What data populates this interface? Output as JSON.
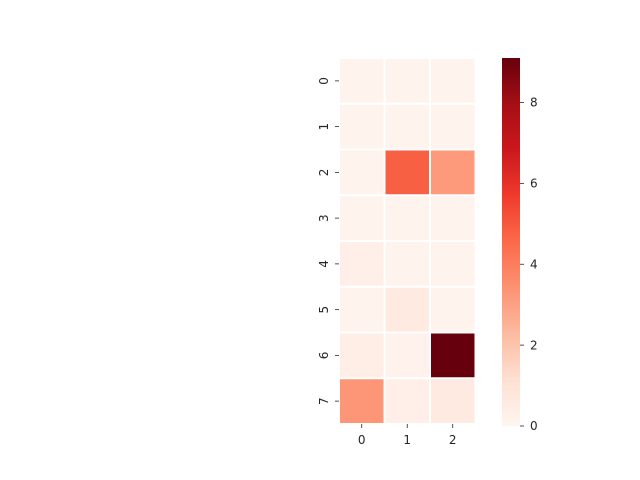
{
  "chart_data": {
    "type": "heatmap",
    "title": "",
    "xlabel": "",
    "ylabel": "",
    "x_categories": [
      "0",
      "1",
      "2"
    ],
    "y_categories": [
      "0",
      "1",
      "2",
      "3",
      "4",
      "5",
      "6",
      "7"
    ],
    "values": [
      [
        0.1,
        0.1,
        0.1
      ],
      [
        0.1,
        0.1,
        0.1
      ],
      [
        0.1,
        4.8,
        3.2
      ],
      [
        0.1,
        0.1,
        0.1
      ],
      [
        0.3,
        0.1,
        0.1
      ],
      [
        0.1,
        0.6,
        0.1
      ],
      [
        0.4,
        0.2,
        9.1
      ],
      [
        3.3,
        0.3,
        0.6
      ]
    ],
    "colormap": "Reds",
    "vmin": 0,
    "vmax": 9.1,
    "colorbar_ticks": [
      "0",
      "2",
      "4",
      "6",
      "8"
    ],
    "cell_gap_color": "#ffffff",
    "grid": false
  }
}
